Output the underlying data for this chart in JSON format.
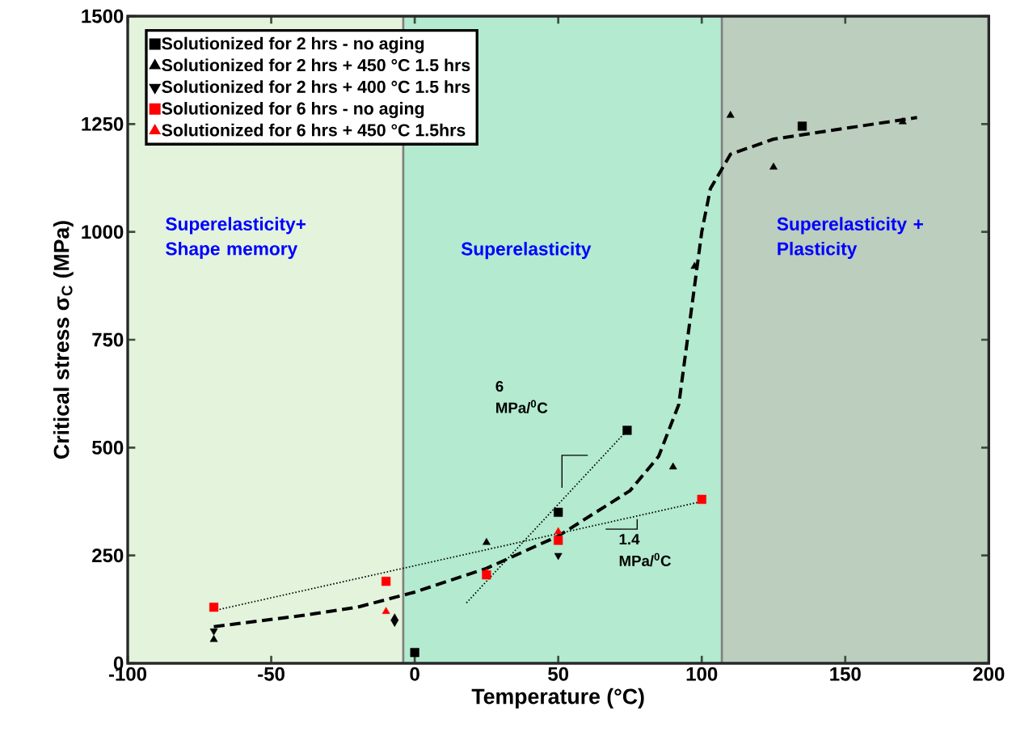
{
  "chart_data": {
    "type": "scatter",
    "xlabel": "Temperature (°C)",
    "ylabel": "Critical stress σ$_{C}$ (MPa)",
    "xlim": [
      -100,
      200
    ],
    "xticks": [
      -100,
      -50,
      0,
      50,
      100,
      150,
      200
    ],
    "ylim": [
      0,
      1500
    ],
    "yticks": [
      0,
      250,
      500,
      750,
      1000,
      1250,
      1500
    ],
    "legend": "top left",
    "bands": [
      {
        "axis": "x",
        "from": -100,
        "to": -4,
        "color": "#e3f3dc"
      },
      {
        "axis": "x",
        "from": -4,
        "to": 107,
        "color": "#b3ead0"
      },
      {
        "axis": "x",
        "from": 107,
        "to": 200,
        "color": "#bccebe"
      }
    ],
    "ref_lines": [
      {
        "axis": "x",
        "value": -4,
        "color": "#808080"
      },
      {
        "axis": "x",
        "value": 107,
        "color": "#808080"
      }
    ],
    "annotations": [
      "Superelasticity+ Shape memory",
      "Superelasticity",
      "Superelasticity + Plasticity",
      "6 MPa/$^{0}$C",
      "1.4 MPa/$^{0}$C"
    ],
    "series": [
      {
        "type": "line",
        "line_style": "dashed",
        "marker": "none",
        "color": "#000000",
        "x": [
          -70,
          -40,
          -20,
          0,
          25,
          50,
          75,
          85,
          92,
          97,
          100,
          103,
          110,
          125,
          150,
          175
        ],
        "values": [
          85,
          110,
          130,
          165,
          220,
          295,
          400,
          480,
          600,
          850,
          1000,
          1100,
          1180,
          1215,
          1240,
          1265
        ]
      },
      {
        "type": "line",
        "line_style": "dotted",
        "marker": "none",
        "color": "#000000",
        "x": [
          18,
          74
        ],
        "values": [
          140,
          540
        ]
      },
      {
        "type": "line",
        "line_style": "dotted",
        "marker": "none",
        "color": "#000000",
        "x": [
          -68,
          100
        ],
        "values": [
          125,
          375
        ]
      },
      {
        "name": "Solutionized for 2 hrs - no aging",
        "marker": "square",
        "color": "#000000",
        "x": [
          0,
          50,
          74,
          135
        ],
        "values": [
          25,
          350,
          540,
          1245
        ]
      },
      {
        "name": "Solutionized for 2 hrs + 450 °C 1.5 hrs",
        "marker": "triangle",
        "color": "#000000",
        "x": [
          -70,
          -7,
          25,
          90,
          97.5,
          110,
          125,
          170
        ],
        "values": [
          55,
          105,
          280,
          455,
          920,
          1270,
          1150,
          1255
        ]
      },
      {
        "name": "Solutionized for 2 hrs + 400 °C 1.5 hrs",
        "marker": "triangle_down",
        "color": "#000000",
        "x": [
          -70,
          -7,
          50
        ],
        "values": [
          75,
          95,
          250
        ]
      },
      {
        "name": "Solutionized for 6 hrs - no aging",
        "marker": "square",
        "color": "#ff0000",
        "x": [
          -70,
          -10,
          25,
          50,
          100
        ],
        "values": [
          130,
          190,
          205,
          285,
          380
        ]
      },
      {
        "name": "Solutionized for 6 hrs + 450 °C 1.5hrs",
        "marker": "triangle",
        "color": "#ff0000",
        "x": [
          -10,
          25,
          50
        ],
        "values": [
          120,
          210,
          305
        ]
      }
    ]
  }
}
